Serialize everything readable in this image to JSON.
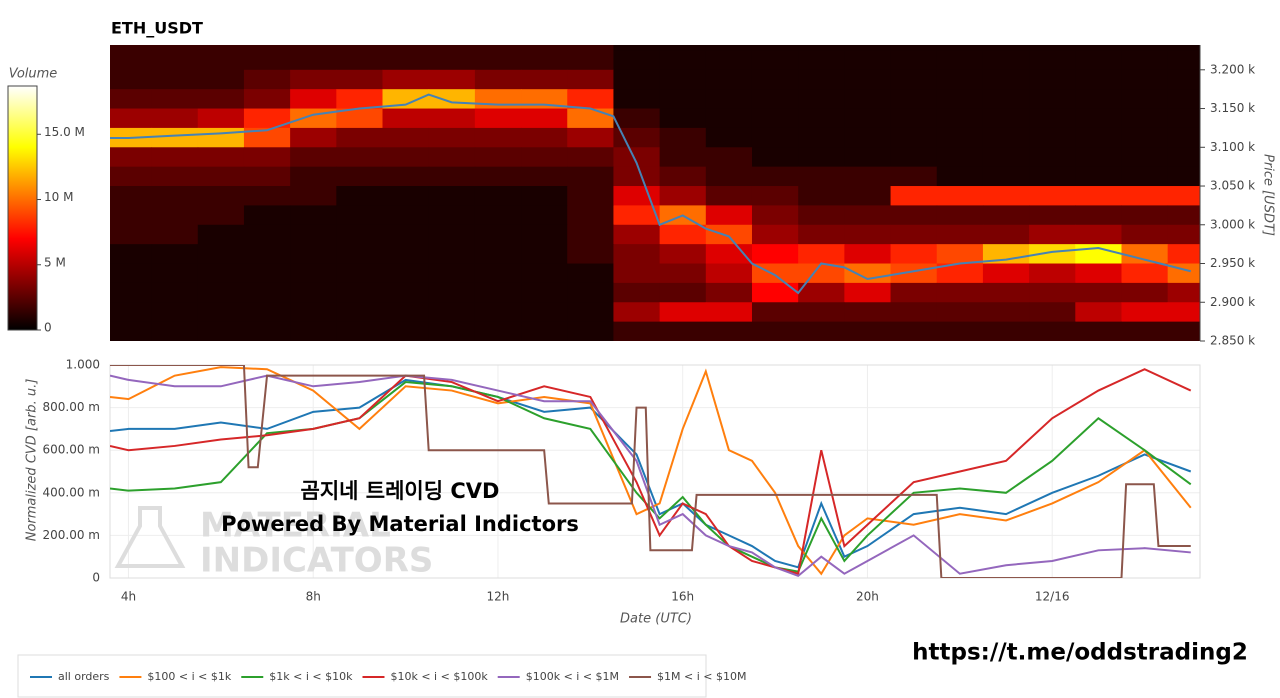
{
  "chart_data": [
    {
      "type": "heatmap",
      "title": "ETH_USDT",
      "y_label": "Price [USDT]",
      "colorbar_label": "Volume",
      "xlim": [
        3.6,
        27.2
      ],
      "ylim": [
        2850,
        3232
      ],
      "yticks": [
        {
          "value": 2850,
          "label": "2.850 k"
        },
        {
          "value": 2900,
          "label": "2.900 k"
        },
        {
          "value": 2950,
          "label": "2.950 k"
        },
        {
          "value": 3000,
          "label": "3.000 k"
        },
        {
          "value": 3050,
          "label": "3.050 k"
        },
        {
          "value": 3100,
          "label": "3.100 k"
        },
        {
          "value": 3150,
          "label": "3.150 k"
        },
        {
          "value": 3200,
          "label": "3.200 k"
        }
      ],
      "clim": [
        0,
        18.7
      ],
      "cticks": [
        0,
        {
          "value": 5,
          "label": "5 M"
        },
        {
          "value": 10,
          "label": "10 M"
        },
        {
          "value": 15,
          "label": "15.0 M"
        }
      ],
      "x": [
        4,
        5,
        6,
        7,
        8,
        9,
        10,
        11,
        12,
        13,
        14,
        15,
        16,
        17,
        18,
        19,
        20,
        21,
        22,
        23,
        24,
        25,
        26,
        27
      ],
      "y": [
        3237.5,
        3212.5,
        3187.5,
        3162.5,
        3137.5,
        3112.5,
        3087.5,
        3062.5,
        3037.5,
        3012.5,
        2987.5,
        2962.5,
        2937.5,
        2912.5,
        2887.5,
        2862.5
      ],
      "z": [
        [
          1,
          1,
          1,
          1,
          1,
          1,
          1,
          1,
          1,
          1,
          1,
          0,
          0,
          0,
          0,
          0,
          0,
          0,
          0,
          0,
          0,
          0,
          0,
          0
        ],
        [
          1,
          1,
          1,
          1,
          1,
          1,
          1,
          1,
          1,
          1,
          1,
          0,
          0,
          0,
          0,
          0,
          0,
          0,
          0,
          0,
          0,
          0,
          0,
          0
        ],
        [
          1,
          1,
          1,
          2,
          3,
          3,
          4,
          4,
          3,
          3,
          3,
          0,
          0,
          0,
          0,
          0,
          0,
          0,
          0,
          0,
          0,
          0,
          0,
          0
        ],
        [
          2,
          2,
          2,
          3,
          6,
          8,
          12,
          12,
          10,
          10,
          8,
          0,
          0,
          0,
          0,
          0,
          0,
          0,
          0,
          0,
          0,
          0,
          0,
          0
        ],
        [
          4,
          4,
          5,
          8,
          10,
          9,
          5,
          5,
          6,
          6,
          10,
          1,
          0,
          0,
          0,
          0,
          0,
          0,
          0,
          0,
          0,
          0,
          0,
          0
        ],
        [
          12,
          12,
          12,
          9,
          4,
          3,
          3,
          3,
          3,
          3,
          4,
          2,
          1,
          0,
          0,
          0,
          0,
          0,
          0,
          0,
          0,
          0,
          0,
          0
        ],
        [
          3,
          3,
          3,
          3,
          2,
          2,
          2,
          2,
          2,
          2,
          2,
          3,
          1,
          1,
          0,
          0,
          0,
          0,
          0,
          0,
          0,
          0,
          0,
          0
        ],
        [
          2,
          2,
          2,
          2,
          1,
          1,
          1,
          1,
          1,
          1,
          1,
          3,
          2,
          1,
          1,
          1,
          1,
          1,
          0,
          0,
          0,
          0,
          0,
          0
        ],
        [
          1,
          1,
          1,
          1,
          1,
          0,
          0,
          0,
          0,
          0,
          1,
          6,
          4,
          2,
          2,
          1,
          1,
          8,
          8,
          8,
          8,
          8,
          8,
          8
        ],
        [
          1,
          1,
          1,
          0,
          0,
          0,
          0,
          0,
          0,
          0,
          1,
          8,
          10,
          6,
          3,
          2,
          2,
          2,
          2,
          2,
          2,
          2,
          2,
          2
        ],
        [
          1,
          1,
          0,
          0,
          0,
          0,
          0,
          0,
          0,
          0,
          1,
          4,
          8,
          9,
          4,
          3,
          3,
          3,
          3,
          3,
          4,
          4,
          3,
          3
        ],
        [
          0,
          0,
          0,
          0,
          0,
          0,
          0,
          0,
          0,
          0,
          1,
          3,
          4,
          6,
          7,
          8,
          6,
          8,
          9,
          12,
          13,
          14,
          10,
          8
        ],
        [
          0,
          0,
          0,
          0,
          0,
          0,
          0,
          0,
          0,
          0,
          0,
          3,
          3,
          5,
          9,
          9,
          10,
          9,
          8,
          6,
          5,
          6,
          8,
          10
        ],
        [
          0,
          0,
          0,
          0,
          0,
          0,
          0,
          0,
          0,
          0,
          0,
          2,
          2,
          3,
          7,
          4,
          6,
          3,
          3,
          3,
          3,
          3,
          3,
          4
        ],
        [
          0,
          0,
          0,
          0,
          0,
          0,
          0,
          0,
          0,
          0,
          0,
          4,
          6,
          6,
          2,
          2,
          2,
          2,
          2,
          2,
          2,
          5,
          6,
          6
        ],
        [
          0,
          0,
          0,
          0,
          0,
          0,
          0,
          0,
          0,
          0,
          0,
          1,
          1,
          1,
          1,
          1,
          1,
          1,
          1,
          1,
          1,
          1,
          1,
          1
        ]
      ],
      "series": [
        {
          "color": "#4682b4",
          "x": [
            3.6,
            4,
            5,
            6,
            7,
            8,
            9,
            10,
            10.5,
            11,
            12,
            13,
            14,
            14.5,
            15,
            15.5,
            16,
            16.5,
            17,
            17.5,
            18,
            18.5,
            19,
            19.5,
            20,
            21,
            22,
            23,
            24,
            25,
            26,
            27
          ],
          "values": [
            3112,
            3112,
            3115,
            3118,
            3122,
            3142,
            3150,
            3155,
            3168,
            3158,
            3155,
            3155,
            3150,
            3140,
            3080,
            3000,
            3012,
            2995,
            2985,
            2950,
            2935,
            2912,
            2950,
            2945,
            2930,
            2940,
            2950,
            2955,
            2965,
            2970,
            2955,
            2940
          ]
        }
      ]
    },
    {
      "type": "line",
      "y_label": "Normalized CVD [arb. u.]",
      "x_label": "Date (UTC)",
      "xlim": [
        3.6,
        27.2
      ],
      "ylim": [
        0,
        1.0
      ],
      "xticks": [
        {
          "value": 4,
          "label": "4h"
        },
        {
          "value": 8,
          "label": "8h"
        },
        {
          "value": 12,
          "label": "12h"
        },
        {
          "value": 16,
          "label": "16h"
        },
        {
          "value": 20,
          "label": "20h"
        },
        {
          "value": 24,
          "label": "12/16"
        }
      ],
      "yticks": [
        0,
        {
          "value": 0.2,
          "label": "200.00 m"
        },
        {
          "value": 0.4,
          "label": "400.00 m"
        },
        {
          "value": 0.6,
          "label": "600.00 m"
        },
        {
          "value": 0.8,
          "label": "800.00 m"
        },
        {
          "value": 1.0,
          "label": "1.000"
        }
      ],
      "grid": true,
      "annotations": [
        "곰지네 트레이딩 CVD",
        "Powered By Material Indictors"
      ],
      "watermark": [
        "MATERIAL",
        "INDICATORS"
      ],
      "series": [
        {
          "name": "all orders",
          "color": "#1f77b4",
          "x": [
            3.6,
            4,
            5,
            6,
            7,
            8,
            9,
            10,
            11,
            12,
            13,
            14,
            15,
            15.5,
            16,
            16.5,
            17,
            17.5,
            18,
            18.5,
            19,
            19.5,
            20,
            21,
            22,
            23,
            24,
            25,
            26,
            27
          ],
          "values": [
            0.69,
            0.7,
            0.7,
            0.73,
            0.7,
            0.78,
            0.8,
            0.93,
            0.9,
            0.85,
            0.78,
            0.8,
            0.58,
            0.3,
            0.35,
            0.25,
            0.2,
            0.15,
            0.08,
            0.05,
            0.35,
            0.1,
            0.15,
            0.3,
            0.33,
            0.3,
            0.4,
            0.48,
            0.58,
            0.5
          ]
        },
        {
          "name": "$100 < i < $1k",
          "color": "#ff7f0e",
          "x": [
            3.6,
            4,
            5,
            6,
            7,
            8,
            9,
            10,
            11,
            12,
            13,
            14,
            15,
            15.5,
            16,
            16.5,
            17,
            17.5,
            18,
            18.5,
            19,
            19.5,
            20,
            21,
            22,
            23,
            24,
            25,
            26,
            27
          ],
          "values": [
            0.85,
            0.84,
            0.95,
            0.99,
            0.98,
            0.88,
            0.7,
            0.9,
            0.88,
            0.82,
            0.85,
            0.82,
            0.3,
            0.35,
            0.7,
            0.97,
            0.6,
            0.55,
            0.4,
            0.15,
            0.02,
            0.2,
            0.28,
            0.25,
            0.3,
            0.27,
            0.35,
            0.45,
            0.6,
            0.33
          ]
        },
        {
          "name": "$1k < i < $10k",
          "color": "#2ca02c",
          "x": [
            3.6,
            4,
            5,
            6,
            7,
            8,
            9,
            10,
            11,
            12,
            13,
            14,
            15,
            15.5,
            16,
            16.5,
            17,
            17.5,
            18,
            18.5,
            19,
            19.5,
            20,
            21,
            22,
            23,
            24,
            25,
            26,
            27
          ],
          "values": [
            0.42,
            0.41,
            0.42,
            0.45,
            0.68,
            0.7,
            0.75,
            0.92,
            0.9,
            0.85,
            0.75,
            0.7,
            0.4,
            0.28,
            0.38,
            0.25,
            0.15,
            0.1,
            0.05,
            0.03,
            0.28,
            0.08,
            0.2,
            0.4,
            0.42,
            0.4,
            0.55,
            0.75,
            0.6,
            0.44
          ]
        },
        {
          "name": "$10k < i < $100k",
          "color": "#d62728",
          "x": [
            3.6,
            4,
            5,
            6,
            7,
            8,
            9,
            10,
            11,
            12,
            13,
            14,
            15,
            15.5,
            16,
            16.5,
            17,
            17.5,
            18,
            18.5,
            19,
            19.5,
            20,
            21,
            22,
            23,
            24,
            25,
            26,
            27
          ],
          "values": [
            0.62,
            0.6,
            0.62,
            0.65,
            0.67,
            0.7,
            0.75,
            0.95,
            0.92,
            0.83,
            0.9,
            0.85,
            0.45,
            0.2,
            0.35,
            0.3,
            0.15,
            0.08,
            0.05,
            0.02,
            0.6,
            0.15,
            0.25,
            0.45,
            0.5,
            0.55,
            0.75,
            0.88,
            0.98,
            0.88
          ]
        },
        {
          "name": "$100k < i < $1M",
          "color": "#9467bd",
          "x": [
            3.6,
            4,
            5,
            6,
            7,
            8,
            9,
            10,
            11,
            12,
            13,
            14,
            15,
            15.5,
            16,
            16.5,
            17,
            17.5,
            18,
            18.5,
            19,
            19.5,
            20,
            21,
            22,
            23,
            24,
            25,
            26,
            27
          ],
          "values": [
            0.95,
            0.93,
            0.9,
            0.9,
            0.95,
            0.9,
            0.92,
            0.95,
            0.93,
            0.88,
            0.83,
            0.83,
            0.55,
            0.25,
            0.3,
            0.2,
            0.15,
            0.12,
            0.05,
            0.01,
            0.1,
            0.02,
            0.08,
            0.2,
            0.02,
            0.06,
            0.08,
            0.13,
            0.14,
            0.12
          ]
        },
        {
          "name": "$1M < i < $10M",
          "color": "#8c564b",
          "x": [
            3.6,
            6.5,
            6.6,
            6.8,
            7,
            10.4,
            10.5,
            13,
            13.1,
            14.9,
            15,
            15.2,
            15.3,
            16.2,
            16.3,
            21.5,
            21.6,
            25.5,
            25.6,
            26.2,
            26.3,
            27
          ],
          "values": [
            1.0,
            1.0,
            0.52,
            0.52,
            0.95,
            0.95,
            0.6,
            0.6,
            0.35,
            0.35,
            0.8,
            0.8,
            0.13,
            0.13,
            0.39,
            0.39,
            0,
            0,
            0.44,
            0.44,
            0.15,
            0.15
          ]
        }
      ]
    }
  ],
  "link": "https://t.me/oddstrading2"
}
